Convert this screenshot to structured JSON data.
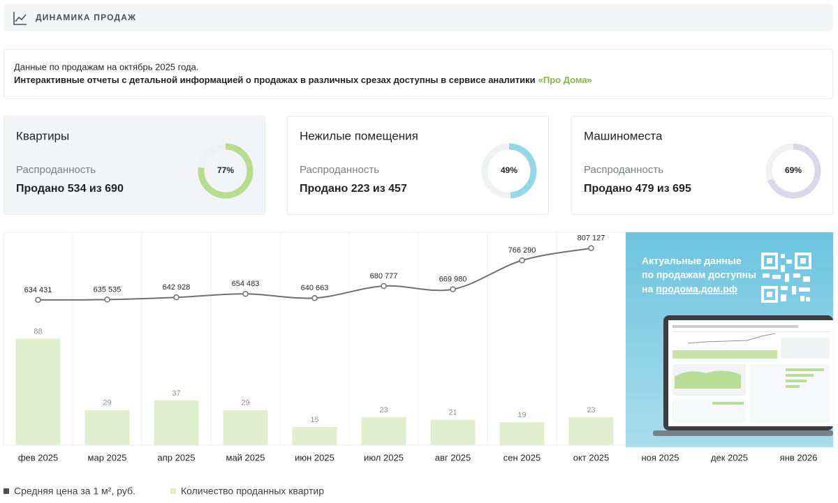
{
  "header": {
    "title": "ДИНАМИКА ПРОДАЖ"
  },
  "info": {
    "line1": "Данные по продажам на октябрь 2025 года.",
    "line2": "Интерактивные отчеты с детальной информацией о продажах в различных срезах доступны в сервисе аналитики",
    "link": "«Про Дома»"
  },
  "cards": [
    {
      "title": "Квартиры",
      "subtitle": "Распроданность",
      "sold_text": "Продано 534 из 690",
      "percent": 77,
      "percent_label": "77%",
      "color": "#b6dc8e"
    },
    {
      "title": "Нежилые помещения",
      "subtitle": "Распроданность",
      "sold_text": "Продано 223 из 457",
      "percent": 49,
      "percent_label": "49%",
      "color": "#93d7e9"
    },
    {
      "title": "Машиноместа",
      "subtitle": "Распроданность",
      "sold_text": "Продано 479 из 695",
      "percent": 69,
      "percent_label": "69%",
      "color": "#d9d9ea"
    }
  ],
  "promo": {
    "line1": "Актуальные данные",
    "line2": "по продажам доступны",
    "line3": "на",
    "link": "продома.дом.рф"
  },
  "chart_data": {
    "type": "combo",
    "categories": [
      "фев 2025",
      "мар 2025",
      "апр 2025",
      "май 2025",
      "июн 2025",
      "июл 2025",
      "авг 2025",
      "сен 2025",
      "окт 2025",
      "ноя 2025",
      "дек 2025",
      "янв 2026"
    ],
    "ylim": [
      0,
      176
    ],
    "y2lim": [
      150000,
      860000
    ],
    "series": [
      {
        "name": "Средняя цена за 1 м², руб.",
        "type": "line",
        "axis": "y2",
        "color": "#6b7177",
        "values": [
          634431,
          635535,
          642928,
          654483,
          640663,
          680777,
          669980,
          766290,
          807127,
          null,
          null,
          null
        ],
        "value_labels": [
          "634 431",
          "635 535",
          "642 928",
          "654 483",
          "640 663",
          "680 777",
          "669 980",
          "766 290",
          "807 127",
          null,
          null,
          null
        ]
      },
      {
        "name": "Количество проданных квартир",
        "type": "bar",
        "color": "#e1efcf",
        "values": [
          88,
          29,
          37,
          29,
          15,
          23,
          21,
          19,
          23,
          null,
          null,
          null
        ]
      }
    ]
  }
}
